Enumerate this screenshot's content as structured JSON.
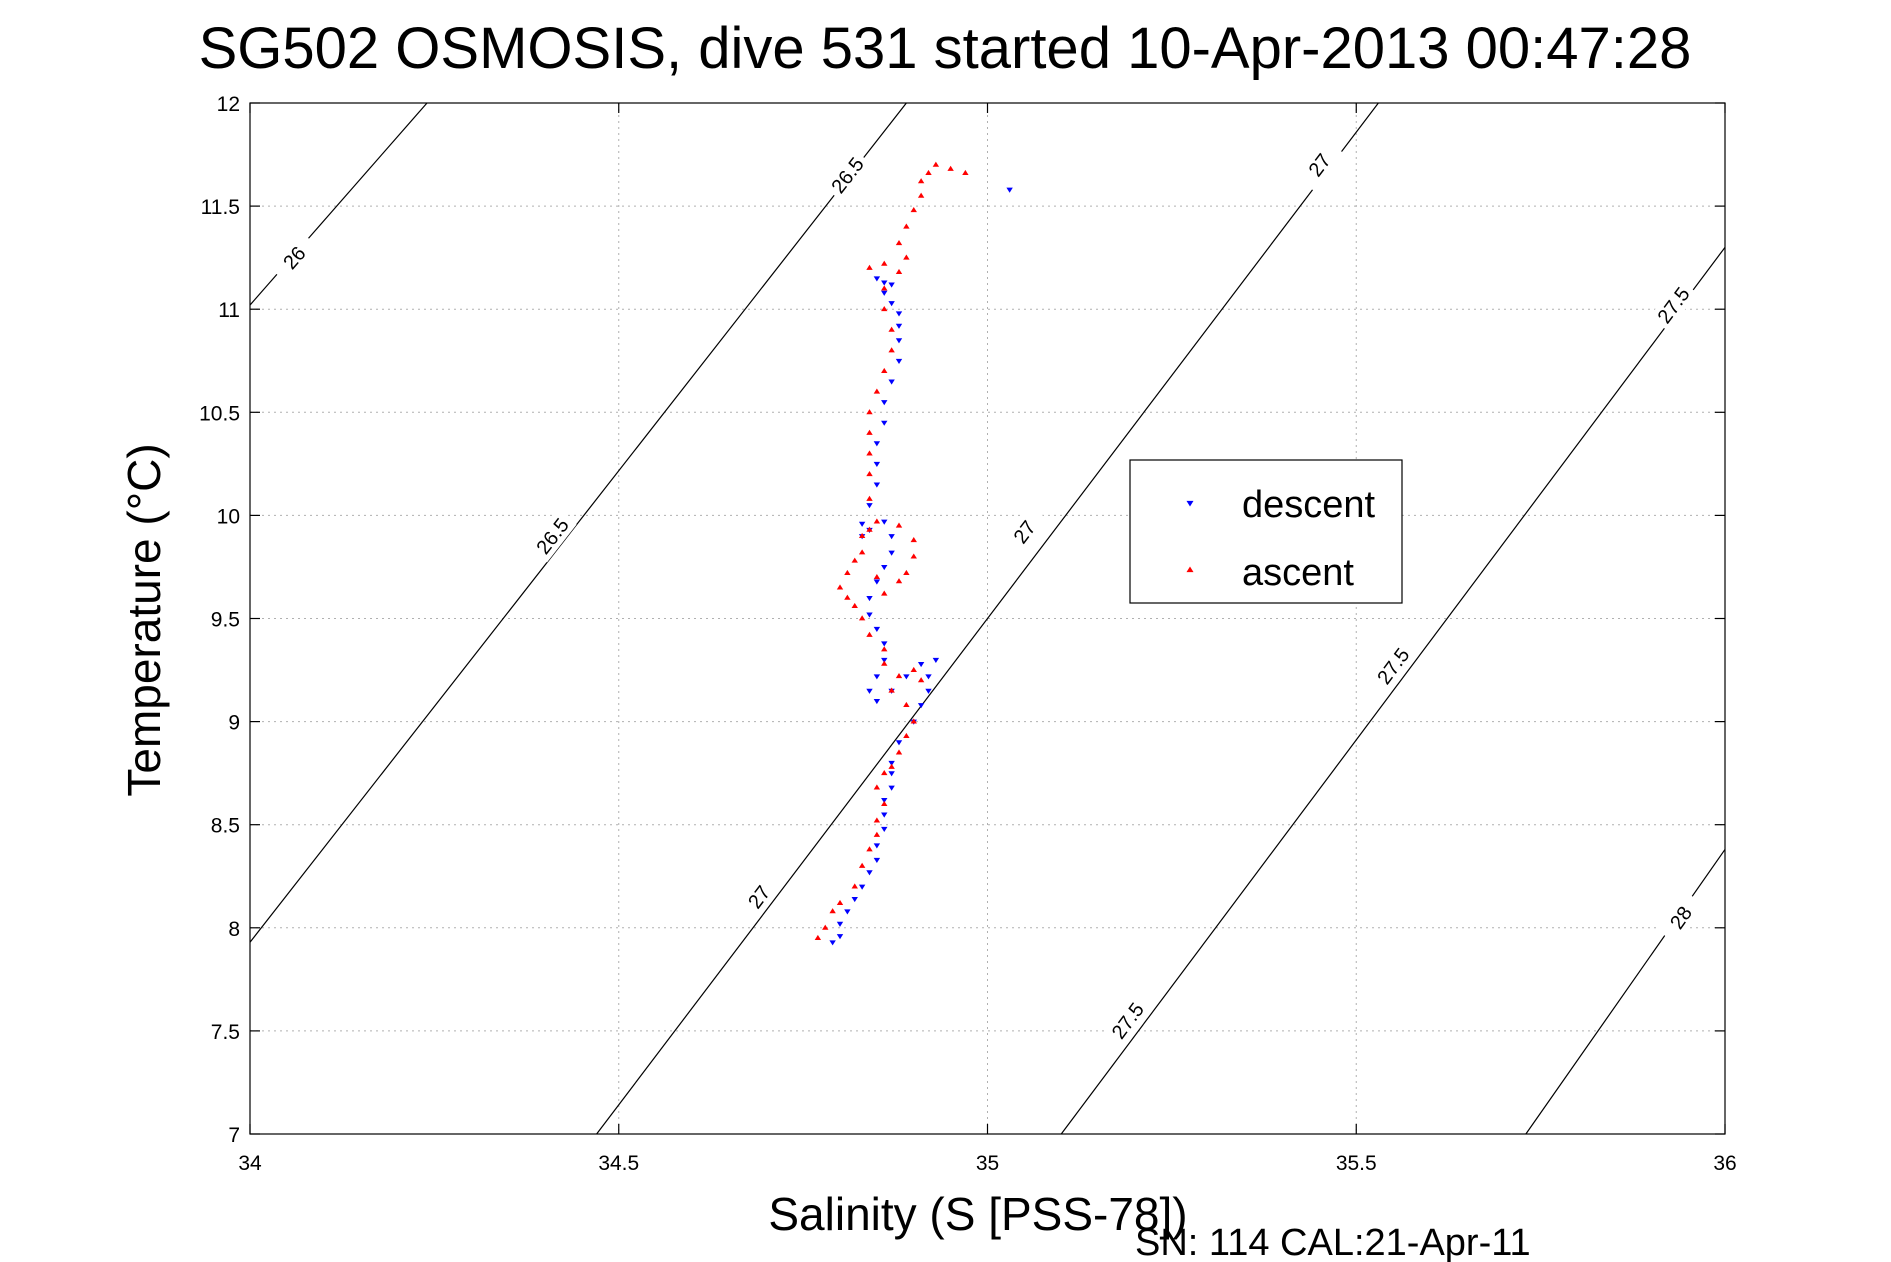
{
  "chart_data": {
    "type": "scatter",
    "title": "SG502 OSMOSIS, dive 531 started 10-Apr-2013 00:47:28",
    "xlabel": "Salinity (S [PSS-78])",
    "ylabel": "Temperature (°C)",
    "footer": "SN: 114  CAL:21-Apr-11",
    "xlim": [
      34,
      36
    ],
    "ylim": [
      7,
      12
    ],
    "xticks": [
      34,
      34.5,
      35,
      35.5,
      36
    ],
    "yticks": [
      7,
      7.5,
      8,
      8.5,
      9,
      9.5,
      10,
      10.5,
      11,
      11.5,
      12
    ],
    "xtick_labels": [
      "34",
      "34.5",
      "35",
      "35.5",
      "36"
    ],
    "ytick_labels": [
      "7",
      "7.5",
      "8",
      "8.5",
      "9",
      "9.5",
      "10",
      "10.5",
      "11",
      "11.5",
      "12"
    ],
    "grid": true,
    "legend_placement": "center-right",
    "contours": [
      {
        "label": "26",
        "points": [
          [
            34.0,
            11.02
          ],
          [
            34.24,
            12.0
          ]
        ],
        "labels_at": [
          [
            34.06,
            11.25
          ]
        ]
      },
      {
        "label": "26.5",
        "points": [
          [
            34.0,
            7.93
          ],
          [
            34.89,
            12.0
          ]
        ],
        "labels_at": [
          [
            34.41,
            9.9
          ],
          [
            34.81,
            11.65
          ]
        ]
      },
      {
        "label": "27",
        "points": [
          [
            34.47,
            7.0
          ],
          [
            35.53,
            12.0
          ]
        ],
        "labels_at": [
          [
            34.69,
            8.15
          ],
          [
            35.05,
            9.92
          ],
          [
            35.45,
            11.7
          ]
        ]
      },
      {
        "label": "27.5",
        "points": [
          [
            35.1,
            7.0
          ],
          [
            36.0,
            11.3
          ]
        ],
        "labels_at": [
          [
            35.19,
            7.55
          ],
          [
            35.55,
            9.27
          ],
          [
            35.93,
            11.02
          ]
        ]
      },
      {
        "label": "28",
        "points": [
          [
            35.73,
            7.0
          ],
          [
            36.0,
            8.38
          ]
        ],
        "labels_at": [
          [
            35.94,
            8.05
          ]
        ]
      }
    ],
    "series": [
      {
        "name": "descent",
        "color": "#0000ff",
        "marker": "triangle-down",
        "points": [
          [
            34.79,
            7.93
          ],
          [
            34.8,
            7.96
          ],
          [
            34.8,
            8.02
          ],
          [
            34.81,
            8.08
          ],
          [
            34.82,
            8.14
          ],
          [
            34.83,
            8.2
          ],
          [
            34.84,
            8.27
          ],
          [
            34.85,
            8.33
          ],
          [
            34.85,
            8.4
          ],
          [
            34.86,
            8.48
          ],
          [
            34.86,
            8.55
          ],
          [
            34.86,
            8.62
          ],
          [
            34.87,
            8.68
          ],
          [
            34.87,
            8.75
          ],
          [
            34.87,
            8.8
          ],
          [
            34.88,
            8.9
          ],
          [
            34.9,
            9.0
          ],
          [
            34.91,
            9.08
          ],
          [
            34.92,
            9.15
          ],
          [
            34.92,
            9.22
          ],
          [
            34.93,
            9.3
          ],
          [
            34.91,
            9.28
          ],
          [
            34.89,
            9.22
          ],
          [
            34.87,
            9.15
          ],
          [
            34.85,
            9.1
          ],
          [
            34.84,
            9.15
          ],
          [
            34.85,
            9.22
          ],
          [
            34.86,
            9.3
          ],
          [
            34.86,
            9.38
          ],
          [
            34.85,
            9.45
          ],
          [
            34.84,
            9.52
          ],
          [
            34.84,
            9.6
          ],
          [
            34.85,
            9.68
          ],
          [
            34.86,
            9.75
          ],
          [
            34.87,
            9.82
          ],
          [
            34.87,
            9.9
          ],
          [
            34.86,
            9.97
          ],
          [
            34.84,
            9.93
          ],
          [
            34.83,
            9.9
          ],
          [
            34.83,
            9.96
          ],
          [
            34.84,
            10.05
          ],
          [
            34.85,
            10.15
          ],
          [
            34.85,
            10.25
          ],
          [
            34.85,
            10.35
          ],
          [
            34.86,
            10.45
          ],
          [
            34.86,
            10.55
          ],
          [
            34.87,
            10.65
          ],
          [
            34.88,
            10.75
          ],
          [
            34.88,
            10.85
          ],
          [
            34.88,
            10.92
          ],
          [
            34.88,
            10.98
          ],
          [
            34.87,
            11.03
          ],
          [
            34.86,
            11.08
          ],
          [
            34.86,
            11.13
          ],
          [
            34.85,
            11.15
          ],
          [
            34.87,
            11.12
          ],
          [
            35.03,
            11.58
          ]
        ]
      },
      {
        "name": "ascent",
        "color": "#ff0000",
        "marker": "triangle-up",
        "points": [
          [
            34.77,
            7.95
          ],
          [
            34.78,
            8.0
          ],
          [
            34.79,
            8.08
          ],
          [
            34.8,
            8.12
          ],
          [
            34.82,
            8.2
          ],
          [
            34.83,
            8.3
          ],
          [
            34.84,
            8.38
          ],
          [
            34.85,
            8.45
          ],
          [
            34.85,
            8.52
          ],
          [
            34.86,
            8.6
          ],
          [
            34.85,
            8.68
          ],
          [
            34.86,
            8.75
          ],
          [
            34.87,
            8.78
          ],
          [
            34.88,
            8.85
          ],
          [
            34.89,
            8.93
          ],
          [
            34.9,
            9.0
          ],
          [
            34.89,
            9.08
          ],
          [
            34.87,
            9.15
          ],
          [
            34.88,
            9.22
          ],
          [
            34.9,
            9.25
          ],
          [
            34.91,
            9.2
          ],
          [
            34.86,
            9.28
          ],
          [
            34.86,
            9.35
          ],
          [
            34.84,
            9.42
          ],
          [
            34.83,
            9.5
          ],
          [
            34.82,
            9.56
          ],
          [
            34.81,
            9.6
          ],
          [
            34.8,
            9.65
          ],
          [
            34.81,
            9.72
          ],
          [
            34.82,
            9.78
          ],
          [
            34.83,
            9.82
          ],
          [
            34.85,
            9.7
          ],
          [
            34.86,
            9.62
          ],
          [
            34.88,
            9.68
          ],
          [
            34.89,
            9.72
          ],
          [
            34.9,
            9.8
          ],
          [
            34.9,
            9.88
          ],
          [
            34.88,
            9.95
          ],
          [
            34.85,
            9.97
          ],
          [
            34.84,
            9.93
          ],
          [
            34.83,
            9.9
          ],
          [
            34.84,
            10.08
          ],
          [
            34.84,
            10.2
          ],
          [
            34.84,
            10.3
          ],
          [
            34.84,
            10.4
          ],
          [
            34.84,
            10.5
          ],
          [
            34.85,
            10.6
          ],
          [
            34.86,
            10.7
          ],
          [
            34.87,
            10.8
          ],
          [
            34.87,
            10.9
          ],
          [
            34.86,
            11.0
          ],
          [
            34.86,
            11.1
          ],
          [
            34.84,
            11.2
          ],
          [
            34.86,
            11.22
          ],
          [
            34.88,
            11.18
          ],
          [
            34.89,
            11.25
          ],
          [
            34.88,
            11.32
          ],
          [
            34.89,
            11.4
          ],
          [
            34.9,
            11.48
          ],
          [
            34.91,
            11.55
          ],
          [
            34.91,
            11.62
          ],
          [
            34.92,
            11.66
          ],
          [
            34.93,
            11.7
          ],
          [
            34.95,
            11.68
          ],
          [
            34.97,
            11.66
          ]
        ]
      }
    ]
  }
}
